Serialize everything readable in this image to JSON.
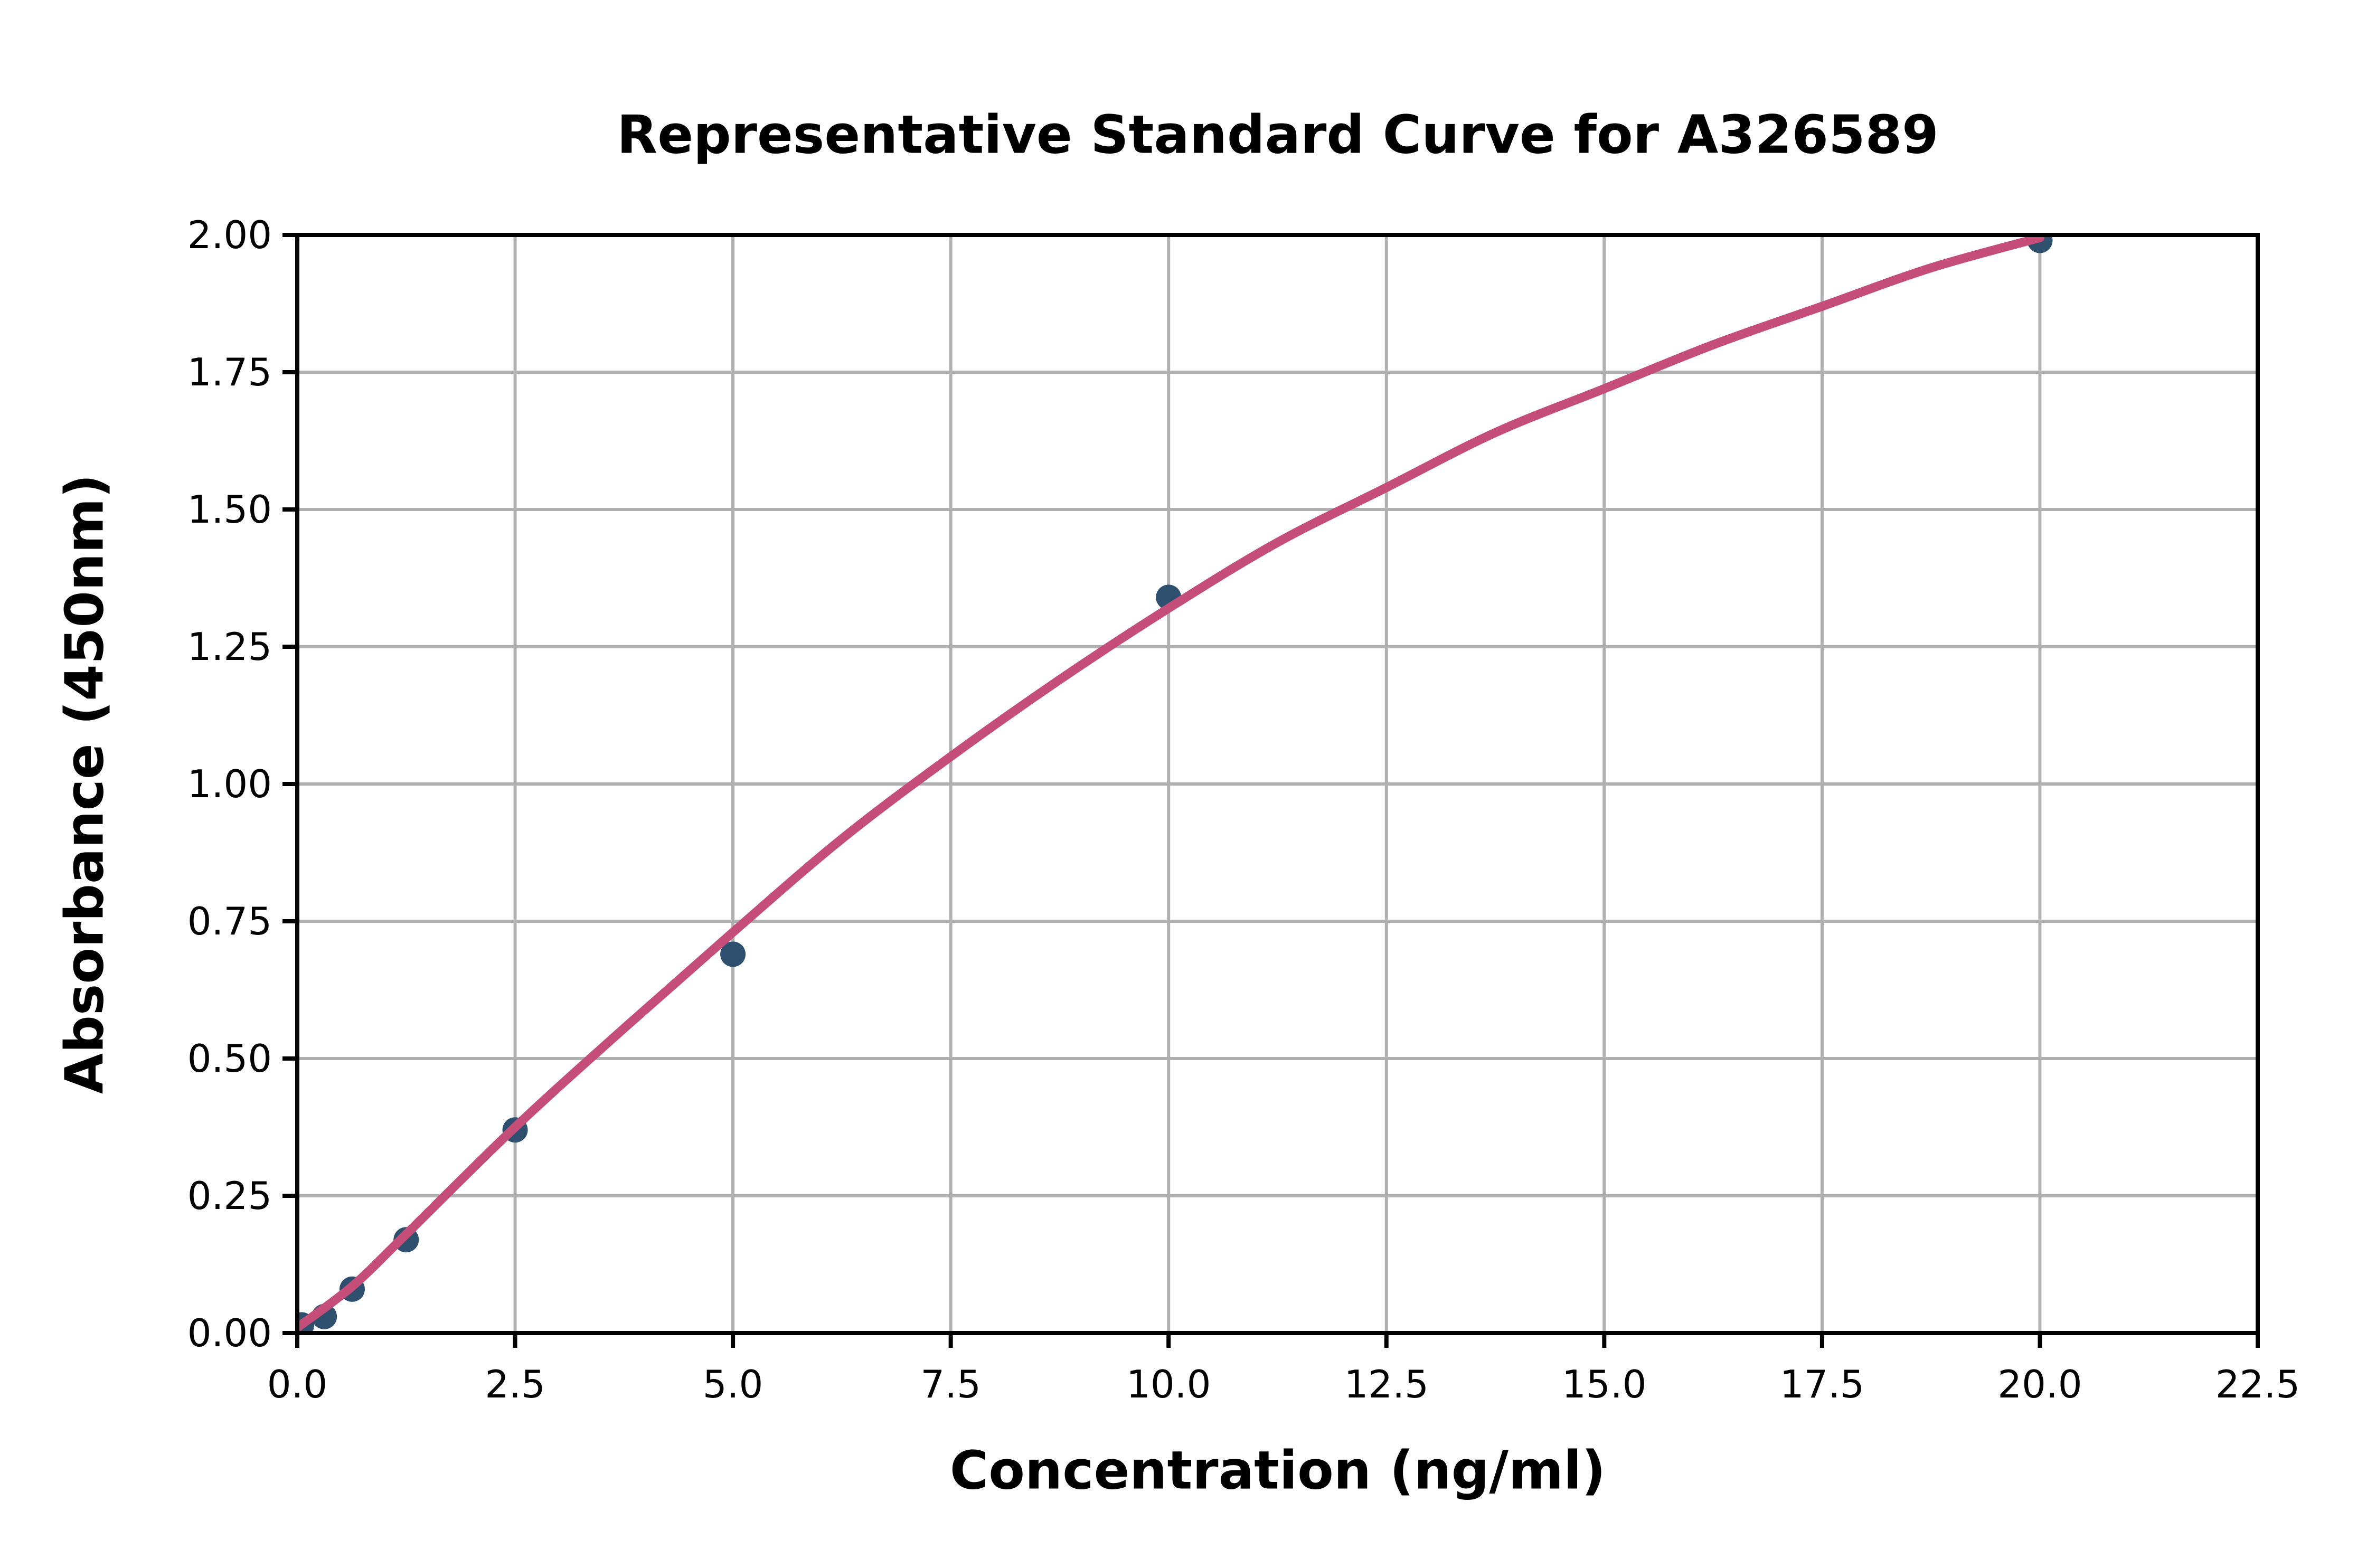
{
  "title": "Representative Standard Curve for A326589",
  "chart_data": {
    "type": "scatter",
    "title": "Representative Standard Curve for A326589",
    "xlabel": "Concentration (ng/ml)",
    "ylabel": "Absorbance (450nm)",
    "xlim": [
      0,
      22.5
    ],
    "ylim": [
      0,
      2.0
    ],
    "grid": true,
    "legend": "none",
    "x_ticks": [
      0,
      2.5,
      5,
      7.5,
      10,
      12.5,
      15,
      17.5,
      20,
      22.5
    ],
    "x_tick_labels": [
      "0.0",
      "2.5",
      "5.0",
      "7.5",
      "10.0",
      "12.5",
      "15.0",
      "17.5",
      "20.0",
      "22.5"
    ],
    "y_ticks": [
      0,
      0.25,
      0.5,
      0.75,
      1.0,
      1.25,
      1.5,
      1.75,
      2.0
    ],
    "y_tick_labels": [
      "0.00",
      "0.25",
      "0.50",
      "0.75",
      "1.00",
      "1.25",
      "1.50",
      "1.75",
      "2.00"
    ],
    "series": [
      {
        "name": "standard-points",
        "type": "scatter",
        "color": "#2f4f6f",
        "points": [
          [
            0.05,
            0.015
          ],
          [
            0.31,
            0.03
          ],
          [
            0.63,
            0.08
          ],
          [
            1.25,
            0.17
          ],
          [
            2.5,
            0.37
          ],
          [
            5,
            0.69
          ],
          [
            10,
            1.34
          ],
          [
            20,
            1.99
          ]
        ]
      },
      {
        "name": "fit-curve",
        "type": "line",
        "color": "#c44e78",
        "points": [
          [
            0,
            0.01
          ],
          [
            0.63,
            0.085
          ],
          [
            1.25,
            0.18
          ],
          [
            2.5,
            0.375
          ],
          [
            3.75,
            0.555
          ],
          [
            5,
            0.73
          ],
          [
            6.25,
            0.9
          ],
          [
            7.5,
            1.05
          ],
          [
            8.75,
            1.19
          ],
          [
            10,
            1.32
          ],
          [
            11.25,
            1.44
          ],
          [
            12.5,
            1.54
          ],
          [
            13.75,
            1.64
          ],
          [
            15,
            1.72
          ],
          [
            16.25,
            1.8
          ],
          [
            17.5,
            1.87
          ],
          [
            18.75,
            1.94
          ],
          [
            20,
            1.995
          ]
        ]
      }
    ],
    "colors": {
      "marker": "#2f4f6f",
      "curve": "#c44e78",
      "grid": "#b0b0b0",
      "axis": "#000000",
      "background": "#ffffff"
    }
  }
}
